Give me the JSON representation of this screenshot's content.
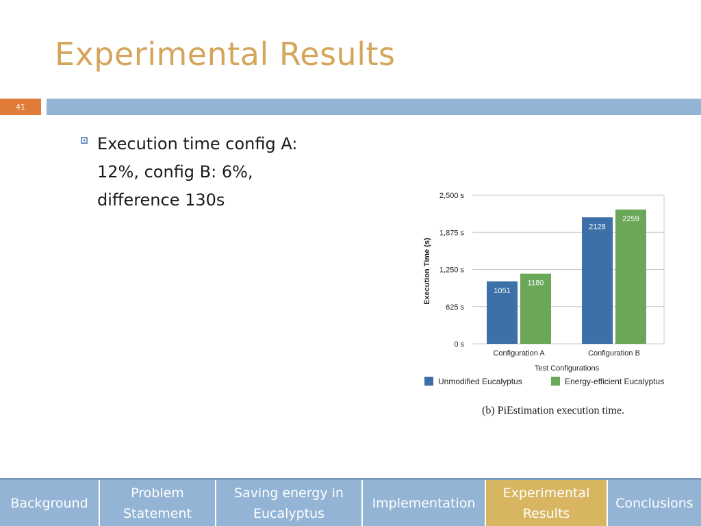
{
  "slide": {
    "title": "Experimental Results",
    "number": "41",
    "bullet": "Execution time config A: 12%, config B: 6%, difference 130s"
  },
  "chart_data": {
    "type": "bar",
    "categories": [
      "Configuration A",
      "Configuration B"
    ],
    "series": [
      {
        "name": "Unmodified Eucalyptus",
        "values": [
          1051,
          2128
        ],
        "color": "#3d6fa8"
      },
      {
        "name": "Energy-efficient Eucalyptus",
        "values": [
          1180,
          2259
        ],
        "color": "#6aa758"
      }
    ],
    "ylim": [
      0,
      2500
    ],
    "yticks": [
      0,
      625,
      1250,
      1875,
      2500
    ],
    "ytick_labels": [
      "0 s",
      "625 s",
      "1,250 s",
      "1,875 s",
      "2,500 s"
    ],
    "xlabel": "Test Configurations",
    "ylabel": "Execution Time (s)",
    "caption": "(b) PiEstimation execution time.",
    "grid": true,
    "legend_position": "bottom"
  },
  "nav": {
    "items": [
      {
        "label": "Background",
        "active": false
      },
      {
        "label": "Problem\nStatement",
        "active": false
      },
      {
        "label": "Saving energy in\nEucalyptus",
        "active": false
      },
      {
        "label": "Implementation",
        "active": false
      },
      {
        "label": "Experimental\nResults",
        "active": true
      },
      {
        "label": "Conclusions",
        "active": false
      }
    ]
  }
}
